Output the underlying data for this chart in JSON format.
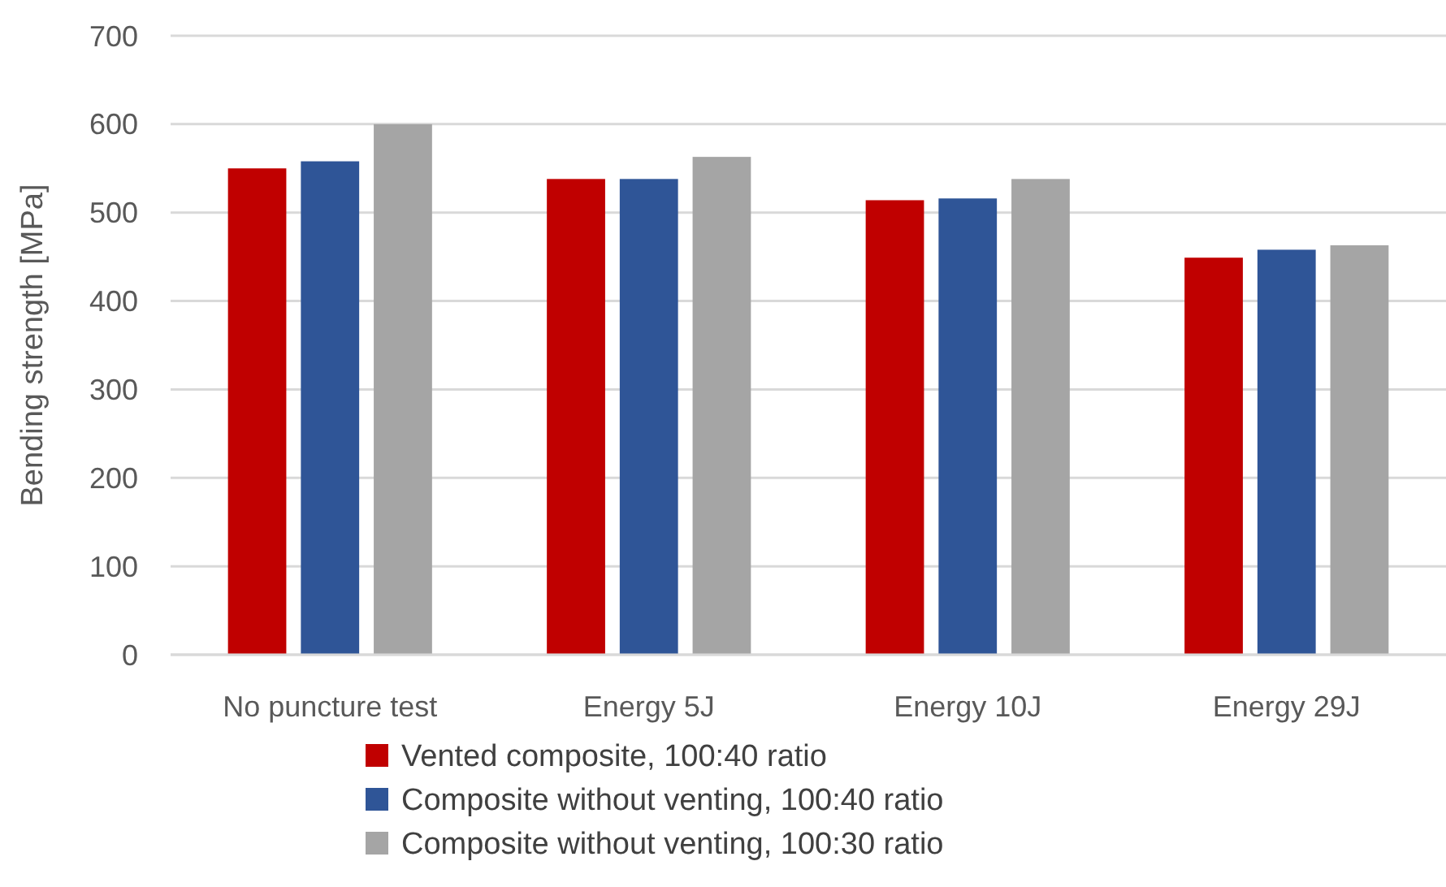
{
  "chart_data": {
    "type": "bar",
    "ylabel": "Bending strength [MPa]",
    "categories": [
      "No puncture test",
      "Energy 5J",
      "Energy 10J",
      "Energy 29J"
    ],
    "series": [
      {
        "name": "Vented composite, 100:40 ratio",
        "color": "#c00000",
        "values": [
          550,
          538,
          514,
          449
        ]
      },
      {
        "name": "Composite without venting, 100:40 ratio",
        "color": "#2f5597",
        "values": [
          558,
          538,
          516,
          458
        ]
      },
      {
        "name": "Composite without venting, 100:30 ratio",
        "color": "#a5a5a5",
        "values": [
          600,
          563,
          538,
          463
        ]
      }
    ],
    "ylim": [
      0,
      700
    ],
    "yticks": [
      0,
      100,
      200,
      300,
      400,
      500,
      600,
      700
    ],
    "grid": "y",
    "legend": "bottom"
  }
}
